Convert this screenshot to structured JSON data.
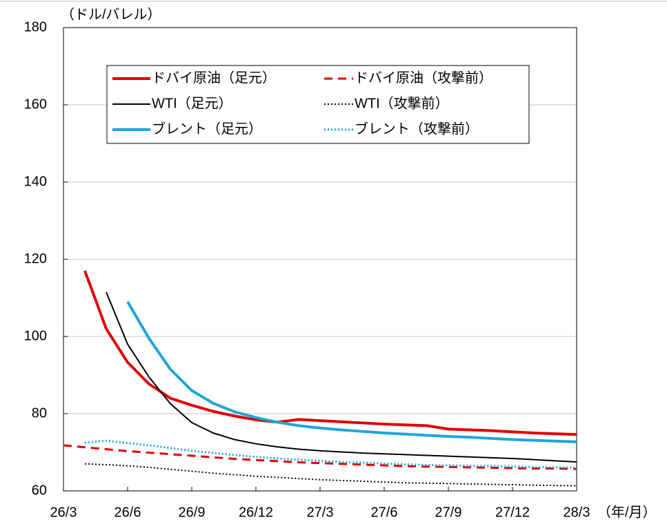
{
  "chart_data": {
    "type": "line",
    "y_axis_label": "（ドル/バレル）",
    "x_axis_label": "（年/月）",
    "x": [
      0,
      1,
      2,
      3,
      4,
      5,
      6,
      7,
      8,
      9,
      10,
      11,
      12,
      13,
      14,
      15,
      16,
      17,
      18,
      19,
      20,
      21,
      22,
      23,
      24
    ],
    "xlim": [
      0,
      24
    ],
    "xticks": [
      {
        "value": 0,
        "label": "26/3"
      },
      {
        "value": 3,
        "label": "26/6"
      },
      {
        "value": 6,
        "label": "26/9"
      },
      {
        "value": 9,
        "label": "26/12"
      },
      {
        "value": 12,
        "label": "27/3"
      },
      {
        "value": 15,
        "label": "27/6"
      },
      {
        "value": 18,
        "label": "27/9"
      },
      {
        "value": 21,
        "label": "27/12"
      },
      {
        "value": 24,
        "label": "28/3"
      }
    ],
    "ylim": [
      60,
      180
    ],
    "yticks": [
      60,
      80,
      100,
      120,
      140,
      160,
      180
    ],
    "grid": true,
    "series": [
      {
        "name": "ドバイ原油（足元）",
        "color": "#e00000",
        "style": "solid",
        "width": 4,
        "values": [
          null,
          117,
          102,
          93.3,
          87.7,
          84,
          82.2,
          80.6,
          79.4,
          78.4,
          77.8,
          78.5,
          78.2,
          77.9,
          77.6,
          77.3,
          77.1,
          76.9,
          76,
          75.8,
          75.6,
          75.3,
          75,
          74.8,
          74.6
        ]
      },
      {
        "name": "ドバイ原油（攻撃前）",
        "color": "#e00000",
        "style": "dashed",
        "width": 3,
        "values": [
          71.8,
          71.3,
          70.8,
          70.3,
          69.9,
          69.5,
          69.1,
          68.7,
          68.3,
          68,
          67.7,
          67.4,
          67.2,
          67,
          66.8,
          66.6,
          66.4,
          66.3,
          66.2,
          66.1,
          66,
          65.9,
          65.8,
          65.8,
          65.7
        ]
      },
      {
        "name": "WTI（足元）",
        "color": "#000000",
        "style": "solid",
        "width": 2,
        "values": [
          null,
          null,
          111.5,
          98,
          89.5,
          82.6,
          77.7,
          75,
          73.3,
          72.2,
          71.4,
          70.8,
          70.4,
          70.1,
          69.8,
          69.6,
          69.4,
          69.2,
          69,
          68.8,
          68.6,
          68.4,
          68.1,
          67.8,
          67.5
        ]
      },
      {
        "name": "WTI（攻撃前）",
        "color": "#000000",
        "style": "dotted",
        "width": 2,
        "values": [
          null,
          67,
          66.8,
          66.5,
          66.1,
          65.6,
          65.1,
          64.6,
          64.2,
          63.8,
          63.5,
          63.2,
          62.9,
          62.7,
          62.5,
          62.3,
          62.1,
          62,
          61.9,
          61.8,
          61.7,
          61.6,
          61.5,
          61.4,
          61.3
        ]
      },
      {
        "name": "ブレント（足元）",
        "color": "#1ea6db",
        "style": "solid",
        "width": 4,
        "values": [
          null,
          null,
          null,
          109,
          99.5,
          91.5,
          86,
          82.7,
          80.5,
          79,
          77.8,
          76.9,
          76.3,
          75.8,
          75.4,
          75,
          74.7,
          74.4,
          74.1,
          73.9,
          73.6,
          73.3,
          73.1,
          72.9,
          72.7
        ]
      },
      {
        "name": "ブレント（攻撃前）",
        "color": "#1ea6db",
        "style": "dotted",
        "width": 3,
        "values": [
          null,
          72.5,
          73,
          72.4,
          71.8,
          71.1,
          70.4,
          69.8,
          69.3,
          68.8,
          68.4,
          68.1,
          67.8,
          67.5,
          67.3,
          67.1,
          66.9,
          66.7,
          66.6,
          66.5,
          66.4,
          66.3,
          66.2,
          66.1,
          66
        ]
      }
    ]
  }
}
